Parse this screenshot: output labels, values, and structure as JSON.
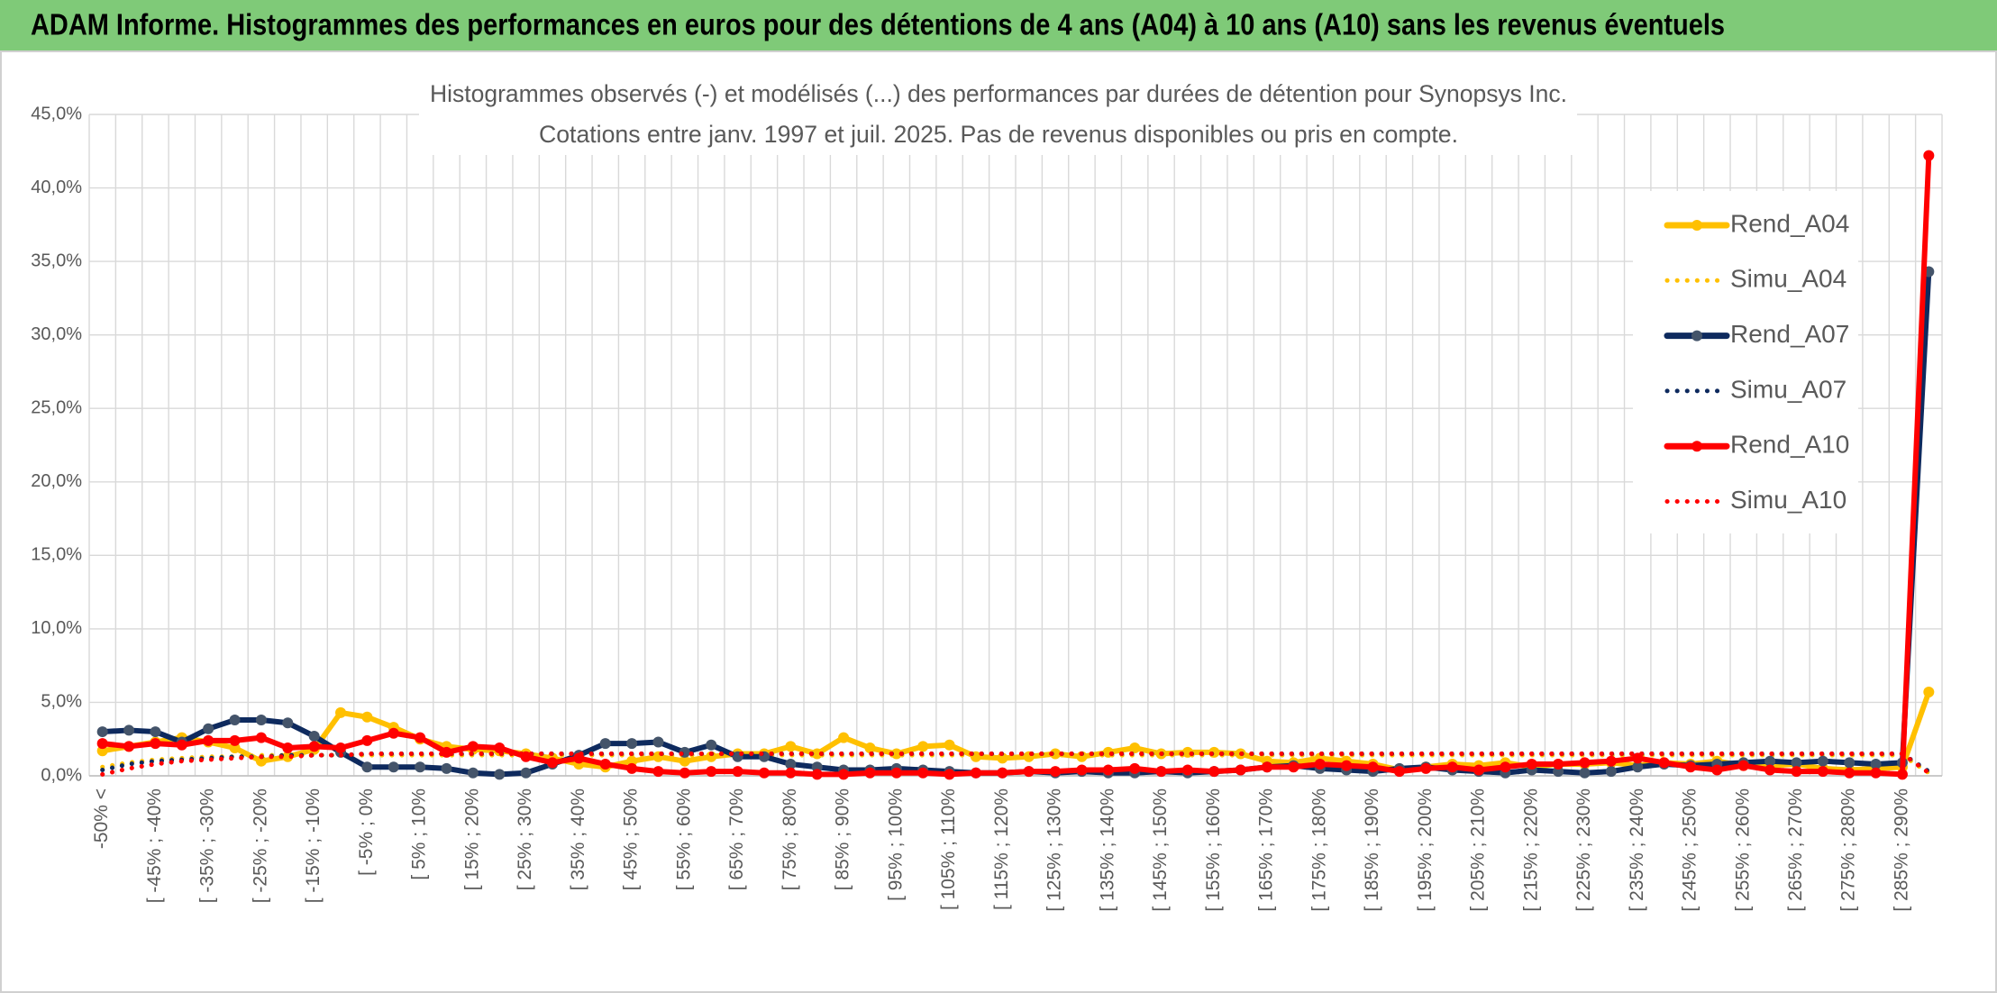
{
  "chart_data": {
    "type": "line",
    "header": "ADAM Informe. Histogrammes des performances en euros pour des détentions de 4 ans (A04) à 10 ans (A10) sans les revenus éventuels",
    "title": "Histogrammes observés (-) et modélisés (...) des performances par durées de détention pour Synopsys Inc.",
    "subtitle": "Cotations entre janv. 1997 et juil. 2025. Pas de revenus disponibles ou pris en compte.",
    "categories": [
      "-50% <",
      null,
      "[ -45% ; -40%",
      null,
      "[ -35% ; -30%",
      null,
      "[ -25% ; -20%",
      null,
      "[ -15% ; -10%",
      null,
      "[ -5% ; 0%",
      null,
      "[ 5% ; 10%",
      null,
      "[ 15% ; 20%",
      null,
      "[ 25% ; 30%",
      null,
      "[ 35% ; 40%",
      null,
      "[ 45% ; 50%",
      null,
      "[ 55% ; 60%",
      null,
      "[ 65% ; 70%",
      null,
      "[ 75% ; 80%",
      null,
      "[ 85% ; 90%",
      null,
      "[ 95% ; 100%",
      null,
      "[ 105% ; 110%",
      null,
      "[ 115% ; 120%",
      null,
      "[ 125% ; 130%",
      null,
      "[ 135% ; 140%",
      null,
      "[ 145% ; 150%",
      null,
      "[ 155% ; 160%",
      null,
      "[ 165% ; 170%",
      null,
      "[ 175% ; 180%",
      null,
      "[ 185% ; 190%",
      null,
      "[ 195% ; 200%",
      null,
      "[ 205% ; 210%",
      null,
      "[ 215% ; 220%",
      null,
      "[ 225% ; 230%",
      null,
      "[ 235% ; 240%",
      null,
      "[ 245% ; 250%",
      null,
      "[ 255% ; 260%",
      null,
      "[ 265% ; 270%",
      null,
      "[ 275% ; 280%",
      null,
      "[ 285% ; 290%",
      null
    ],
    "series": [
      {
        "name": "Rend_A04",
        "color": "#ffc000",
        "style": "solid",
        "marker": true,
        "values": [
          1.7,
          2.0,
          2.3,
          2.6,
          2.3,
          1.9,
          1.0,
          1.3,
          1.8,
          4.3,
          4.0,
          3.3,
          2.5,
          2.0,
          1.8,
          1.7,
          1.5,
          1.2,
          0.8,
          0.6,
          1.0,
          1.3,
          1.0,
          1.3,
          1.5,
          1.5,
          2.0,
          1.5,
          2.6,
          1.9,
          1.5,
          2.0,
          2.1,
          1.3,
          1.2,
          1.3,
          1.5,
          1.3,
          1.6,
          1.9,
          1.5,
          1.6,
          1.6,
          1.5,
          1.0,
          0.9,
          1.2,
          1.0,
          0.8,
          0.4,
          0.6,
          0.8,
          0.7,
          0.9,
          0.6,
          0.8,
          0.8,
          0.9,
          0.7,
          0.9,
          0.8,
          1.0,
          0.7,
          0.7,
          0.8,
          0.5,
          0.4,
          0.5,
          0.6,
          5.7
        ]
      },
      {
        "name": "Simu_A04",
        "color": "#ffc000",
        "style": "dotted",
        "marker": false,
        "values": [
          0.6,
          0.9,
          1.1,
          1.2,
          1.3,
          1.3,
          1.4,
          1.4,
          1.4,
          1.4,
          1.4,
          1.4,
          1.4,
          1.4,
          1.4,
          1.4,
          1.4,
          1.4,
          1.4,
          1.4,
          1.4,
          1.4,
          1.4,
          1.4,
          1.4,
          1.4,
          1.4,
          1.4,
          1.4,
          1.4,
          1.4,
          1.4,
          1.4,
          1.4,
          1.4,
          1.4,
          1.4,
          1.4,
          1.4,
          1.4,
          1.4,
          1.4,
          1.4,
          1.4,
          1.4,
          1.4,
          1.4,
          1.4,
          1.4,
          1.4,
          1.4,
          1.4,
          1.4,
          1.4,
          1.4,
          1.4,
          1.4,
          1.4,
          1.4,
          1.4,
          1.4,
          1.4,
          1.4,
          1.4,
          1.4,
          1.4,
          1.4,
          1.4,
          1.4,
          0.2
        ]
      },
      {
        "name": "Rend_A07",
        "color": "#0e2a5e",
        "style": "solid",
        "marker": true,
        "values": [
          3.0,
          3.1,
          3.0,
          2.3,
          3.2,
          3.8,
          3.8,
          3.6,
          2.7,
          1.6,
          0.6,
          0.6,
          0.6,
          0.5,
          0.2,
          0.1,
          0.2,
          0.8,
          1.4,
          2.2,
          2.2,
          2.3,
          1.6,
          2.1,
          1.3,
          1.3,
          0.8,
          0.6,
          0.4,
          0.4,
          0.5,
          0.4,
          0.3,
          0.2,
          0.2,
          0.3,
          0.2,
          0.3,
          0.2,
          0.2,
          0.3,
          0.2,
          0.3,
          0.4,
          0.6,
          0.7,
          0.5,
          0.4,
          0.3,
          0.5,
          0.6,
          0.4,
          0.3,
          0.2,
          0.4,
          0.3,
          0.2,
          0.3,
          0.6,
          0.8,
          0.7,
          0.8,
          0.9,
          1.0,
          0.9,
          1.0,
          0.9,
          0.8,
          0.9,
          34.3
        ]
      },
      {
        "name": "Simu_A07",
        "color": "#0e2a5e",
        "style": "dotted",
        "marker": false,
        "values": [
          0.4,
          0.8,
          1.0,
          1.1,
          1.2,
          1.3,
          1.3,
          1.4,
          1.4,
          1.4,
          1.5,
          1.5,
          1.5,
          1.5,
          1.5,
          1.5,
          1.5,
          1.5,
          1.5,
          1.5,
          1.5,
          1.5,
          1.5,
          1.5,
          1.5,
          1.5,
          1.5,
          1.5,
          1.5,
          1.5,
          1.5,
          1.5,
          1.5,
          1.5,
          1.5,
          1.5,
          1.5,
          1.5,
          1.5,
          1.5,
          1.5,
          1.5,
          1.5,
          1.5,
          1.5,
          1.5,
          1.5,
          1.5,
          1.5,
          1.5,
          1.5,
          1.5,
          1.5,
          1.5,
          1.5,
          1.5,
          1.5,
          1.5,
          1.5,
          1.5,
          1.5,
          1.5,
          1.5,
          1.5,
          1.5,
          1.5,
          1.5,
          1.5,
          1.5,
          0.3
        ]
      },
      {
        "name": "Rend_A10",
        "color": "#ff0000",
        "style": "solid",
        "marker": true,
        "values": [
          2.2,
          2.0,
          2.2,
          2.1,
          2.4,
          2.4,
          2.6,
          1.9,
          2.0,
          1.9,
          2.4,
          2.9,
          2.6,
          1.6,
          2.0,
          1.9,
          1.3,
          0.9,
          1.2,
          0.8,
          0.5,
          0.3,
          0.2,
          0.3,
          0.3,
          0.2,
          0.2,
          0.1,
          0.1,
          0.2,
          0.2,
          0.2,
          0.1,
          0.2,
          0.2,
          0.3,
          0.3,
          0.4,
          0.4,
          0.5,
          0.3,
          0.4,
          0.3,
          0.4,
          0.6,
          0.6,
          0.8,
          0.7,
          0.6,
          0.3,
          0.5,
          0.6,
          0.4,
          0.6,
          0.8,
          0.8,
          0.9,
          1.0,
          1.2,
          0.9,
          0.6,
          0.4,
          0.7,
          0.4,
          0.3,
          0.3,
          0.2,
          0.2,
          0.1,
          42.2
        ]
      },
      {
        "name": "Simu_A10",
        "color": "#ff0000",
        "style": "dotted",
        "marker": false,
        "values": [
          0.1,
          0.5,
          0.8,
          1.0,
          1.1,
          1.2,
          1.3,
          1.3,
          1.4,
          1.4,
          1.5,
          1.5,
          1.5,
          1.5,
          1.5,
          1.5,
          1.5,
          1.5,
          1.5,
          1.5,
          1.5,
          1.5,
          1.5,
          1.5,
          1.5,
          1.5,
          1.5,
          1.5,
          1.5,
          1.5,
          1.5,
          1.5,
          1.5,
          1.5,
          1.5,
          1.5,
          1.5,
          1.5,
          1.5,
          1.5,
          1.5,
          1.5,
          1.5,
          1.5,
          1.5,
          1.5,
          1.5,
          1.5,
          1.5,
          1.5,
          1.5,
          1.5,
          1.5,
          1.5,
          1.5,
          1.5,
          1.5,
          1.5,
          1.5,
          1.5,
          1.5,
          1.5,
          1.5,
          1.5,
          1.5,
          1.5,
          1.5,
          1.5,
          1.5,
          0.2
        ]
      }
    ],
    "ylim": [
      0,
      45
    ],
    "yticks": [
      {
        "value": 0,
        "label": "0,0%"
      },
      {
        "value": 5,
        "label": "5,0%"
      },
      {
        "value": 10,
        "label": "10,0%"
      },
      {
        "value": 15,
        "label": "15,0%"
      },
      {
        "value": 20,
        "label": "20,0%"
      },
      {
        "value": 25,
        "label": "25,0%"
      },
      {
        "value": 30,
        "label": "30,0%"
      },
      {
        "value": 35,
        "label": "35,0%"
      },
      {
        "value": 40,
        "label": "40,0%"
      },
      {
        "value": 45,
        "label": "45,0%"
      }
    ],
    "grid": true,
    "legend": "right"
  }
}
